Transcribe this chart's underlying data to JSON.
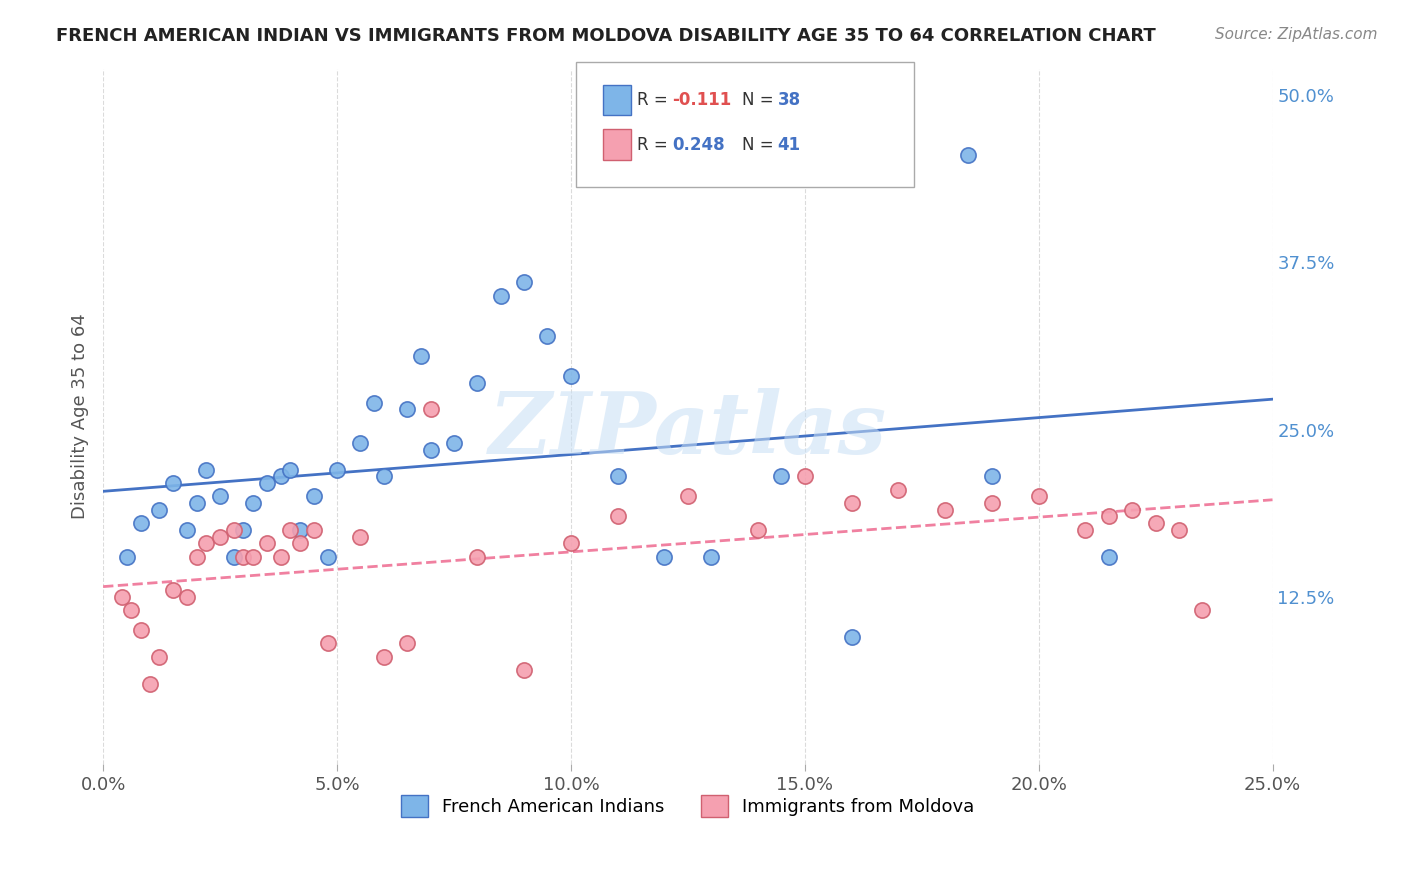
{
  "title": "FRENCH AMERICAN INDIAN VS IMMIGRANTS FROM MOLDOVA DISABILITY AGE 35 TO 64 CORRELATION CHART",
  "source": "Source: ZipAtlas.com",
  "xlabel_ticks": [
    "0.0%",
    "5.0%",
    "10.0%",
    "15.0%",
    "20.0%",
    "25.0%"
  ],
  "xlabel_vals": [
    0.0,
    0.05,
    0.1,
    0.15,
    0.2,
    0.25
  ],
  "ylabel_ticks": [
    "12.5%",
    "25.0%",
    "37.5%",
    "50.0%"
  ],
  "ylabel_vals": [
    0.125,
    0.25,
    0.375,
    0.5
  ],
  "ylabel_label": "Disability Age 35 to 64",
  "xlim": [
    0.0,
    0.25
  ],
  "ylim": [
    0.0,
    0.52
  ],
  "blue_scatter_x": [
    0.005,
    0.008,
    0.012,
    0.015,
    0.018,
    0.02,
    0.022,
    0.025,
    0.028,
    0.03,
    0.032,
    0.035,
    0.038,
    0.04,
    0.042,
    0.045,
    0.048,
    0.05,
    0.055,
    0.058,
    0.06,
    0.065,
    0.068,
    0.07,
    0.075,
    0.08,
    0.085,
    0.09,
    0.095,
    0.1,
    0.11,
    0.12,
    0.13,
    0.145,
    0.16,
    0.19,
    0.215,
    0.185
  ],
  "blue_scatter_y": [
    0.155,
    0.18,
    0.19,
    0.21,
    0.175,
    0.195,
    0.22,
    0.2,
    0.155,
    0.175,
    0.195,
    0.21,
    0.215,
    0.22,
    0.175,
    0.2,
    0.155,
    0.22,
    0.24,
    0.27,
    0.215,
    0.265,
    0.305,
    0.235,
    0.24,
    0.285,
    0.35,
    0.36,
    0.32,
    0.29,
    0.215,
    0.155,
    0.155,
    0.215,
    0.095,
    0.215,
    0.155,
    0.455
  ],
  "pink_scatter_x": [
    0.004,
    0.006,
    0.008,
    0.01,
    0.012,
    0.015,
    0.018,
    0.02,
    0.022,
    0.025,
    0.028,
    0.03,
    0.032,
    0.035,
    0.038,
    0.04,
    0.042,
    0.045,
    0.048,
    0.055,
    0.06,
    0.065,
    0.07,
    0.08,
    0.09,
    0.1,
    0.11,
    0.125,
    0.14,
    0.15,
    0.16,
    0.17,
    0.18,
    0.19,
    0.2,
    0.21,
    0.215,
    0.22,
    0.225,
    0.23,
    0.235
  ],
  "pink_scatter_y": [
    0.125,
    0.115,
    0.1,
    0.06,
    0.08,
    0.13,
    0.125,
    0.155,
    0.165,
    0.17,
    0.175,
    0.155,
    0.155,
    0.165,
    0.155,
    0.175,
    0.165,
    0.175,
    0.09,
    0.17,
    0.08,
    0.09,
    0.265,
    0.155,
    0.07,
    0.165,
    0.185,
    0.2,
    0.175,
    0.215,
    0.195,
    0.205,
    0.19,
    0.195,
    0.2,
    0.175,
    0.185,
    0.19,
    0.18,
    0.175,
    0.115
  ],
  "blue_color": "#7eb5e8",
  "pink_color": "#f5a0b0",
  "blue_line_color": "#4472c4",
  "pink_line_color": "#f080a0",
  "pink_edge_color": "#d06070",
  "R_blue": -0.111,
  "N_blue": 38,
  "R_pink": 0.248,
  "N_pink": 41,
  "legend_label_blue": "French American Indians",
  "legend_label_pink": "Immigrants from Moldova",
  "watermark": "ZIPatlas",
  "background_color": "#ffffff",
  "grid_color": "#cccccc"
}
